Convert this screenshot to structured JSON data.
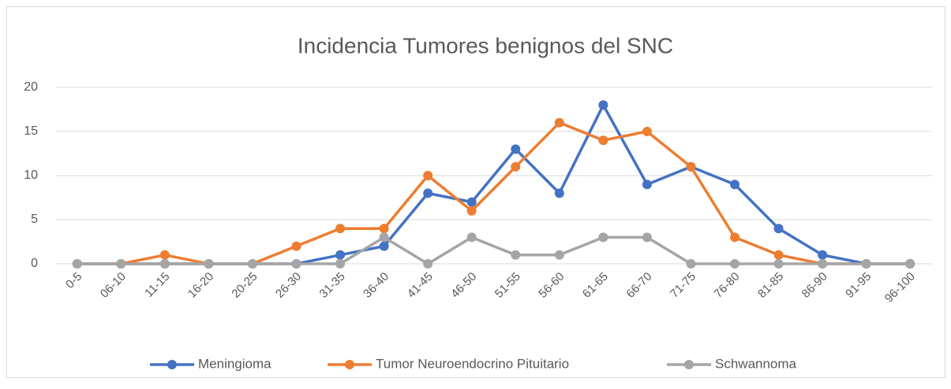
{
  "chart_data": {
    "type": "line",
    "title": "Incidencia Tumores benignos del SNC",
    "categories": [
      "0-5",
      "06-10",
      "11-15",
      "16-20",
      "20-25",
      "26-30",
      "31-35",
      "36-40",
      "41-45",
      "46-50",
      "51-55",
      "56-60",
      "61-65",
      "66-70",
      "71-75",
      "76-80",
      "81-85",
      "86-90",
      "91-95",
      "96-100"
    ],
    "series": [
      {
        "name": "Meningioma",
        "color": "#4472c4",
        "values": [
          0,
          0,
          0,
          0,
          0,
          0,
          1,
          2,
          8,
          7,
          13,
          8,
          18,
          9,
          11,
          9,
          4,
          1,
          0,
          0
        ]
      },
      {
        "name": "Tumor Neuroendocrino Pituitario",
        "color": "#ed7d31",
        "values": [
          0,
          0,
          1,
          0,
          0,
          2,
          4,
          4,
          10,
          6,
          11,
          16,
          14,
          15,
          11,
          3,
          1,
          0,
          0,
          0
        ]
      },
      {
        "name": "Schwannoma",
        "color": "#a5a5a5",
        "values": [
          0,
          0,
          0,
          0,
          0,
          0,
          0,
          3,
          0,
          3,
          1,
          1,
          3,
          3,
          0,
          0,
          0,
          0,
          0,
          0
        ]
      }
    ],
    "ylim": [
      0,
      20
    ],
    "yticks": [
      0,
      5,
      10,
      15,
      20
    ],
    "grid": true,
    "legend": "bottom"
  }
}
